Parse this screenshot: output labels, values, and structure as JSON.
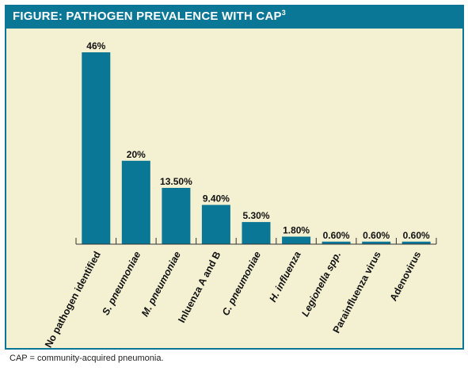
{
  "header": {
    "title": "FIGURE: PATHOGEN PREVALENCE WITH CAP",
    "superscript": "3"
  },
  "footnote": "CAP = community-acquired pneumonia.",
  "colors": {
    "bar": "#0a7796",
    "header": "#0a7796",
    "panel": "#f4f0d2"
  },
  "chart_data": {
    "type": "bar",
    "categories": [
      "No pathogen identified",
      "S. pneumoniae",
      "M. pneumoniae",
      "Inluenza A and B",
      "C. pneumoniae",
      "H. influenza",
      "Legionella spp.",
      "Parainfluenza virus",
      "Adenovirus"
    ],
    "italic_categories": [
      false,
      true,
      true,
      false,
      true,
      true,
      true,
      false,
      false
    ],
    "values": [
      46,
      20,
      13.5,
      9.4,
      5.3,
      1.8,
      0.6,
      0.6,
      0.6
    ],
    "value_labels": [
      "46%",
      "20%",
      "13.50%",
      "9.40%",
      "5.30%",
      "1.80%",
      "0.60%",
      "0.60%",
      "0.60%"
    ],
    "ylim": [
      0,
      46
    ],
    "grid": false,
    "title": "",
    "xlabel": "",
    "ylabel": ""
  }
}
